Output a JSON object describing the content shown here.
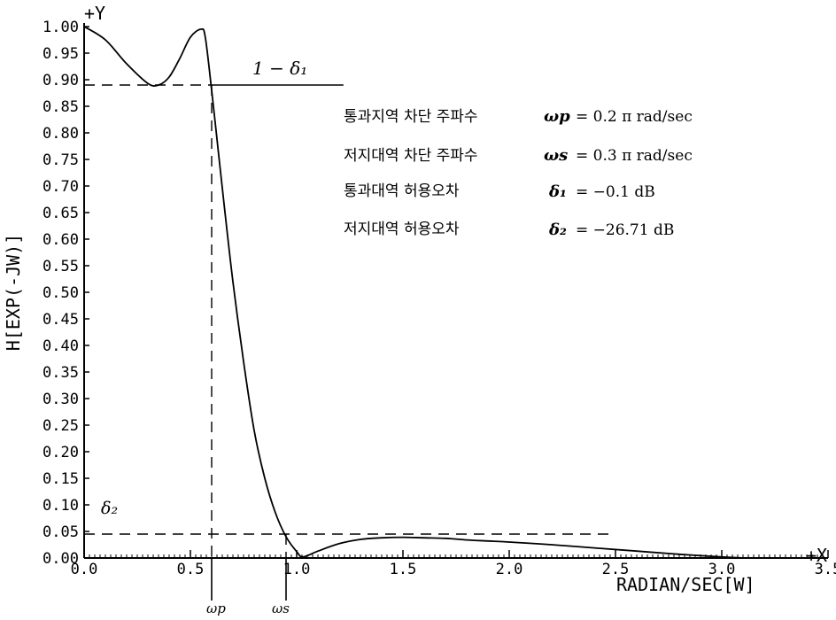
{
  "chart_data": {
    "type": "line",
    "title": "",
    "xlabel": "RADIAN/SEC[W]",
    "ylabel": "H[EXP(-JW)]",
    "x_axis_marker": "+X",
    "y_axis_marker": "+Y",
    "xlim": [
      0.0,
      3.5
    ],
    "ylim": [
      0.0,
      1.0
    ],
    "x_ticks": [
      "0.0",
      "0.5",
      "1.0",
      "1.5",
      "2.0",
      "2.5",
      "3.0",
      "3.5"
    ],
    "y_ticks": [
      "0.00",
      "0.05",
      "0.10",
      "0.15",
      "0.20",
      "0.25",
      "0.30",
      "0.35",
      "0.40",
      "0.45",
      "0.50",
      "0.55",
      "0.60",
      "0.65",
      "0.70",
      "0.75",
      "0.80",
      "0.85",
      "0.90",
      "0.95",
      "1.00"
    ],
    "grid": false,
    "series": [
      {
        "x": [
          0.0,
          0.1,
          0.2,
          0.3,
          0.35,
          0.4,
          0.45,
          0.5,
          0.55,
          0.57,
          0.6,
          0.63,
          0.66,
          0.7,
          0.75,
          0.8,
          0.85,
          0.9,
          0.95,
          1.0,
          1.03,
          1.1,
          1.2,
          1.3,
          1.4,
          1.5,
          1.6,
          1.7,
          1.8,
          1.9,
          2.0,
          2.2,
          2.4,
          2.6,
          2.8,
          3.0,
          3.1
        ],
        "y": [
          1.0,
          0.975,
          0.93,
          0.893,
          0.89,
          0.905,
          0.94,
          0.98,
          0.995,
          0.98,
          0.88,
          0.77,
          0.66,
          0.52,
          0.37,
          0.24,
          0.15,
          0.085,
          0.04,
          0.012,
          0.002,
          0.013,
          0.027,
          0.035,
          0.038,
          0.039,
          0.038,
          0.037,
          0.034,
          0.032,
          0.03,
          0.025,
          0.019,
          0.013,
          0.007,
          0.002,
          0.0
        ]
      }
    ],
    "reference_lines": {
      "passband_level": {
        "label": "1 − δ₁",
        "y": 0.89
      },
      "stopband_level": {
        "label": "δ₂",
        "y": 0.045
      },
      "wp": {
        "label": "ωp",
        "x": 0.6
      },
      "ws": {
        "label": "ωs",
        "x": 0.95
      }
    },
    "annotations": [
      {
        "label": "통과지역 차단 주파수",
        "symbol": "ωp",
        "value": "= 0.2 π  rad/sec"
      },
      {
        "label": "저지대역 차단 주파수",
        "symbol": "ωs",
        "value": "= 0.3 π  rad/sec"
      },
      {
        "label": "통과대역 허용오차",
        "symbol": "δ₁",
        "value": "= −0.1 dB"
      },
      {
        "label": "저지대역 허용오차",
        "symbol": "δ₂",
        "value": "= −26.71 dB"
      }
    ]
  }
}
